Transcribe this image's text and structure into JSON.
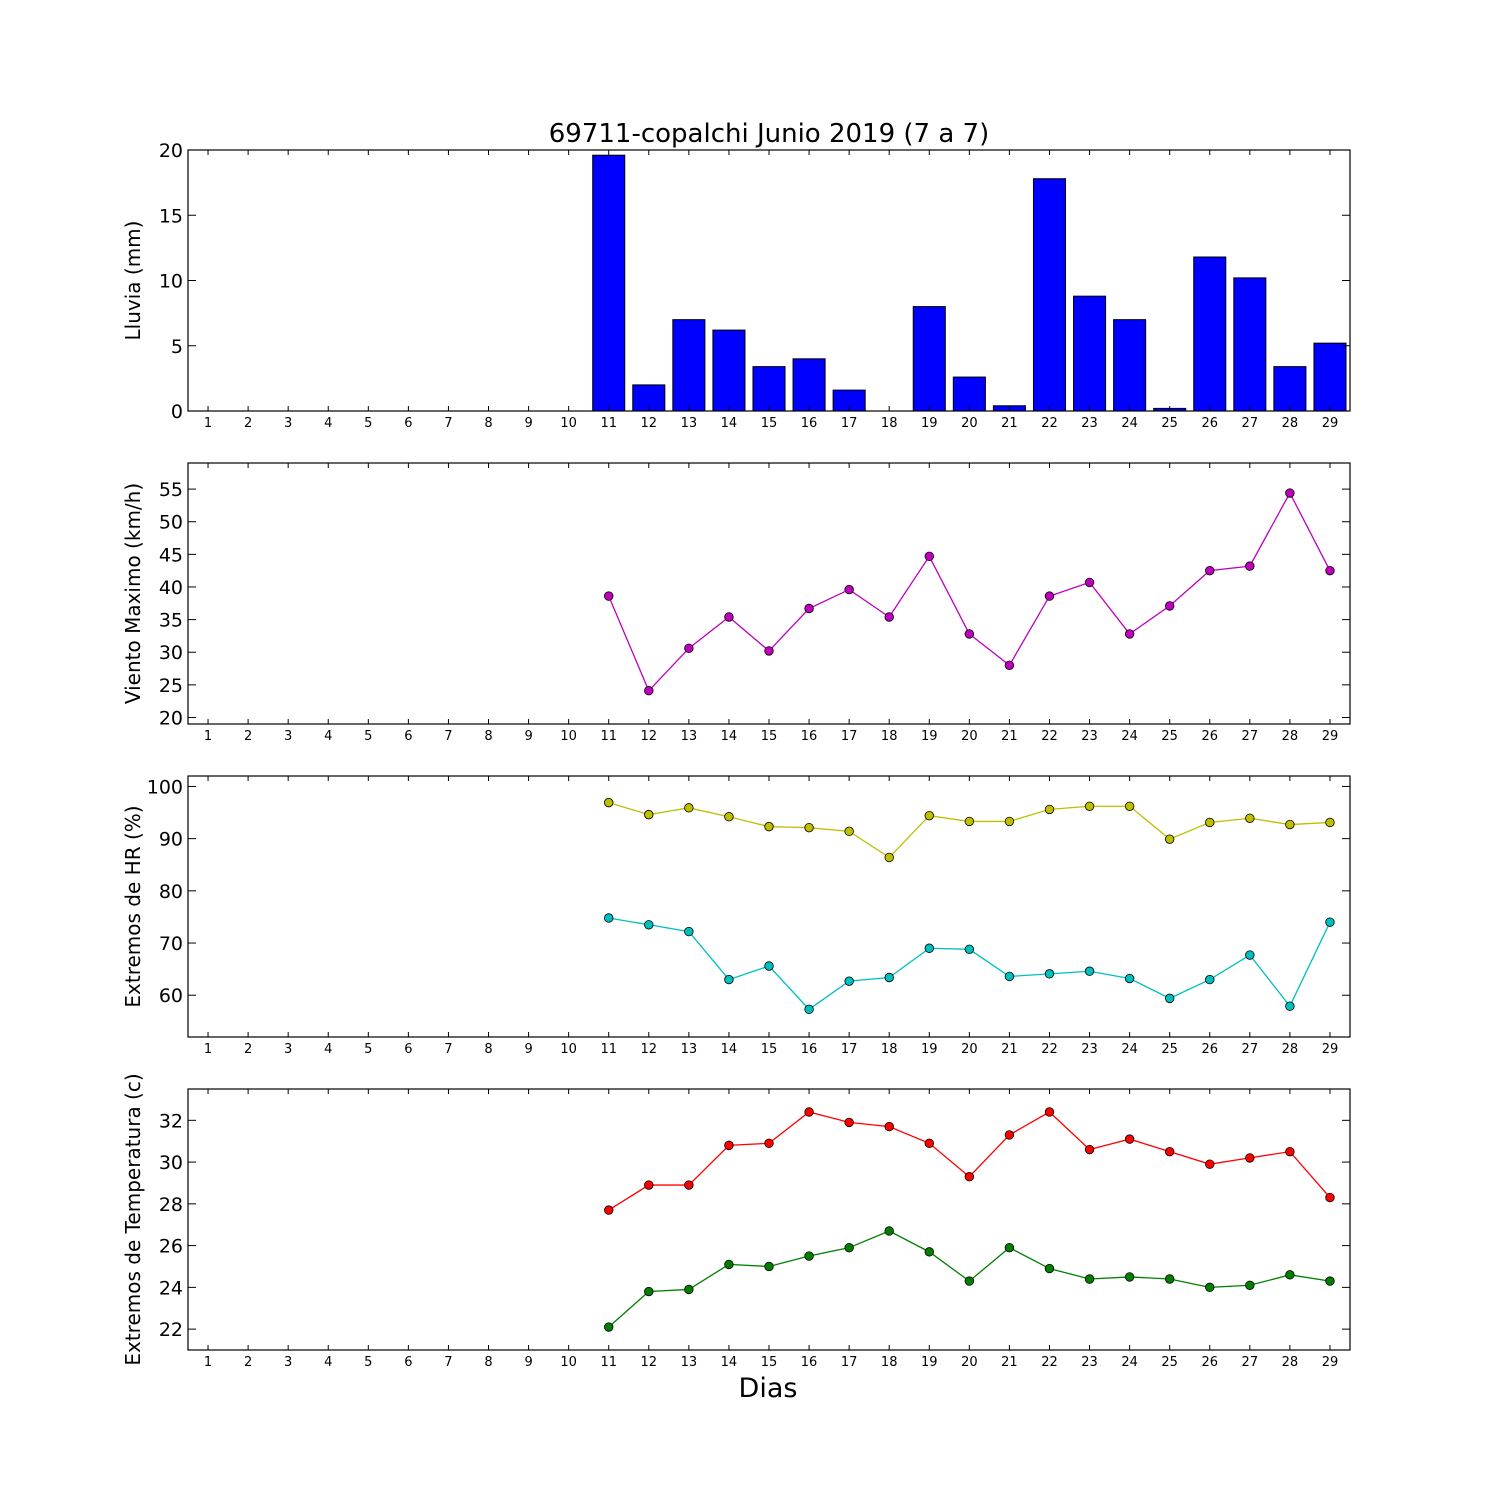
{
  "figure": {
    "title": "69711-copalchi Junio 2019  (7 a 7)",
    "xlabel": "Dias"
  },
  "chart_data": [
    {
      "type": "bar",
      "ylabel": "Lluvia (mm)",
      "ylim": [
        0,
        20
      ],
      "yticks": [
        0,
        5,
        10,
        15,
        20
      ],
      "xlim": [
        0.5,
        29.5
      ],
      "categories": [
        1,
        2,
        3,
        4,
        5,
        6,
        7,
        8,
        9,
        10,
        11,
        12,
        13,
        14,
        15,
        16,
        17,
        18,
        19,
        20,
        21,
        22,
        23,
        24,
        25,
        26,
        27,
        28,
        29
      ],
      "color": "#0000ff",
      "values": [
        0,
        0,
        0,
        0,
        0,
        0,
        0,
        0,
        0,
        0,
        19.6,
        2.0,
        7.0,
        6.2,
        3.4,
        4.0,
        1.6,
        0.0,
        8.0,
        2.6,
        0.4,
        17.8,
        8.8,
        7.0,
        0.2,
        11.8,
        10.2,
        3.4,
        5.2
      ]
    },
    {
      "type": "line",
      "ylabel": "Viento Maximo (km/h)",
      "ylim": [
        19,
        59
      ],
      "yticks": [
        20,
        25,
        30,
        35,
        40,
        45,
        50,
        55
      ],
      "xlim": [
        0.5,
        29.5
      ],
      "categories": [
        1,
        2,
        3,
        4,
        5,
        6,
        7,
        8,
        9,
        10,
        11,
        12,
        13,
        14,
        15,
        16,
        17,
        18,
        19,
        20,
        21,
        22,
        23,
        24,
        25,
        26,
        27,
        28,
        29
      ],
      "series": [
        {
          "color": "#bf00bf",
          "x": [
            11,
            12,
            13,
            14,
            15,
            16,
            17,
            18,
            19,
            20,
            21,
            22,
            23,
            24,
            25,
            26,
            27,
            28,
            29
          ],
          "values": [
            38.6,
            24.1,
            30.6,
            35.4,
            30.2,
            36.7,
            39.6,
            35.4,
            44.7,
            32.8,
            28.0,
            38.6,
            40.7,
            32.8,
            37.1,
            42.5,
            43.2,
            54.4,
            42.5
          ]
        }
      ]
    },
    {
      "type": "line",
      "ylabel": "Extremos de HR (%)",
      "ylim": [
        52,
        102
      ],
      "yticks": [
        60,
        70,
        80,
        90,
        100
      ],
      "xlim": [
        0.5,
        29.5
      ],
      "categories": [
        1,
        2,
        3,
        4,
        5,
        6,
        7,
        8,
        9,
        10,
        11,
        12,
        13,
        14,
        15,
        16,
        17,
        18,
        19,
        20,
        21,
        22,
        23,
        24,
        25,
        26,
        27,
        28,
        29
      ],
      "series": [
        {
          "color": "#bfbf00",
          "x": [
            11,
            12,
            13,
            14,
            15,
            16,
            17,
            18,
            19,
            20,
            21,
            22,
            23,
            24,
            25,
            26,
            27,
            28,
            29
          ],
          "values": [
            96.9,
            94.6,
            95.9,
            94.2,
            92.3,
            92.1,
            91.4,
            86.4,
            94.4,
            93.3,
            93.3,
            95.6,
            96.2,
            96.2,
            89.9,
            93.1,
            93.9,
            92.7,
            93.1
          ]
        },
        {
          "color": "#00bfbf",
          "x": [
            11,
            12,
            13,
            14,
            15,
            16,
            17,
            18,
            19,
            20,
            21,
            22,
            23,
            24,
            25,
            26,
            27,
            28,
            29
          ],
          "values": [
            74.8,
            73.5,
            72.2,
            63.0,
            65.6,
            57.3,
            62.7,
            63.4,
            69.0,
            68.8,
            63.6,
            64.1,
            64.6,
            63.2,
            59.4,
            63.0,
            67.7,
            57.9,
            74.0
          ]
        }
      ]
    },
    {
      "type": "line",
      "ylabel": "Extremos de Temperatura (c)",
      "ylim": [
        21,
        33.5
      ],
      "yticks": [
        22,
        24,
        26,
        28,
        30,
        32
      ],
      "xlim": [
        0.5,
        29.5
      ],
      "categories": [
        1,
        2,
        3,
        4,
        5,
        6,
        7,
        8,
        9,
        10,
        11,
        12,
        13,
        14,
        15,
        16,
        17,
        18,
        19,
        20,
        21,
        22,
        23,
        24,
        25,
        26,
        27,
        28,
        29
      ],
      "series": [
        {
          "color": "#ff0000",
          "x": [
            11,
            12,
            13,
            14,
            15,
            16,
            17,
            18,
            19,
            20,
            21,
            22,
            23,
            24,
            25,
            26,
            27,
            28,
            29
          ],
          "values": [
            27.7,
            28.9,
            28.9,
            30.8,
            30.9,
            32.4,
            31.9,
            31.7,
            30.9,
            29.3,
            31.3,
            32.4,
            30.6,
            31.1,
            30.5,
            29.9,
            30.2,
            30.5,
            28.3
          ]
        },
        {
          "color": "#007f00",
          "x": [
            11,
            12,
            13,
            14,
            15,
            16,
            17,
            18,
            19,
            20,
            21,
            22,
            23,
            24,
            25,
            26,
            27,
            28,
            29
          ],
          "values": [
            22.1,
            23.8,
            23.9,
            25.1,
            25.0,
            25.5,
            25.9,
            26.7,
            25.7,
            24.3,
            25.9,
            24.9,
            24.4,
            24.5,
            24.4,
            24.0,
            24.1,
            24.6,
            24.3
          ]
        }
      ]
    }
  ]
}
